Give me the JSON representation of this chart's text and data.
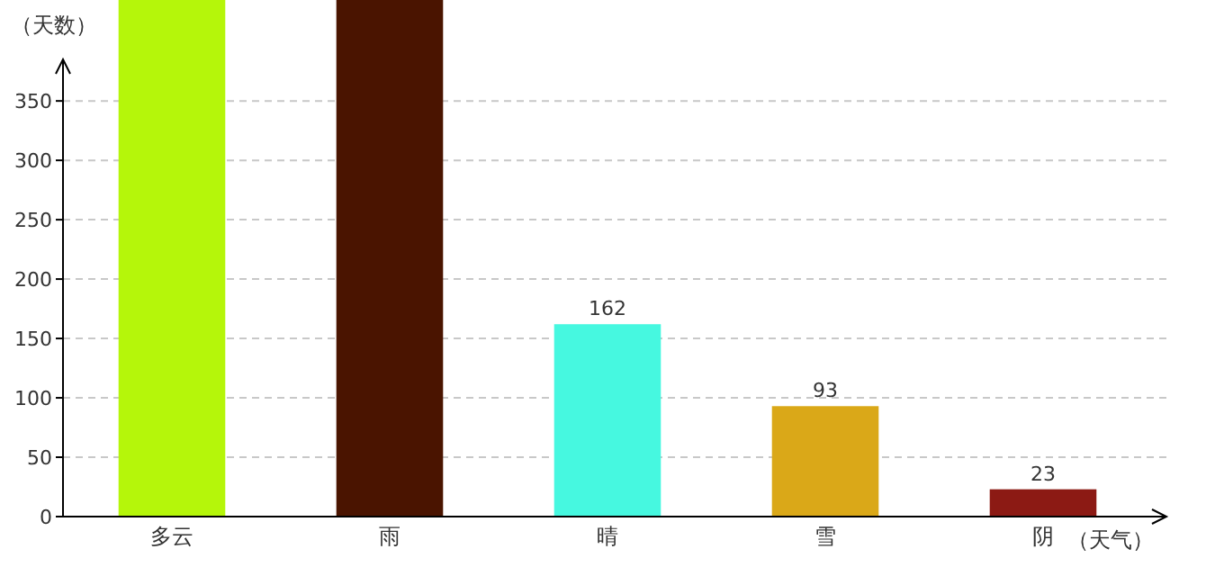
{
  "chart_data": {
    "type": "bar",
    "ylabel": "（天数）",
    "xlabel": "（天气）",
    "categories": [
      "多云",
      "雨",
      "晴",
      "雪",
      "阴"
    ],
    "values": [
      435,
      435,
      162,
      93,
      23
    ],
    "value_labels": [
      null,
      null,
      "162",
      "93",
      "23"
    ],
    "colors": [
      "#b5f60a",
      "#4a1400",
      "#46f8e0",
      "#daa818",
      "#8c1a14"
    ],
    "ylim": [
      0,
      435
    ],
    "yticks": [
      0,
      50,
      100,
      150,
      200,
      250,
      300,
      350
    ],
    "grid": "y"
  }
}
